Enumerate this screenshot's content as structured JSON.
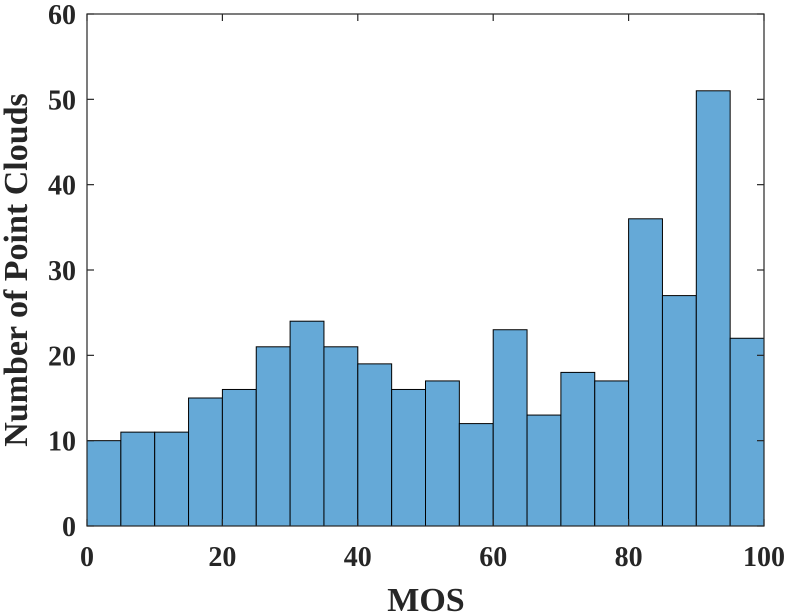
{
  "chart_data": {
    "type": "bar",
    "bin_width": 5,
    "bins": [
      {
        "x0": 0,
        "x1": 5,
        "count": 10
      },
      {
        "x0": 5,
        "x1": 10,
        "count": 11
      },
      {
        "x0": 10,
        "x1": 15,
        "count": 11
      },
      {
        "x0": 15,
        "x1": 20,
        "count": 15
      },
      {
        "x0": 20,
        "x1": 25,
        "count": 16
      },
      {
        "x0": 25,
        "x1": 30,
        "count": 21
      },
      {
        "x0": 30,
        "x1": 35,
        "count": 24
      },
      {
        "x0": 35,
        "x1": 40,
        "count": 21
      },
      {
        "x0": 40,
        "x1": 45,
        "count": 19
      },
      {
        "x0": 45,
        "x1": 50,
        "count": 16
      },
      {
        "x0": 50,
        "x1": 55,
        "count": 17
      },
      {
        "x0": 55,
        "x1": 60,
        "count": 12
      },
      {
        "x0": 60,
        "x1": 65,
        "count": 23
      },
      {
        "x0": 65,
        "x1": 70,
        "count": 13
      },
      {
        "x0": 70,
        "x1": 75,
        "count": 18
      },
      {
        "x0": 75,
        "x1": 80,
        "count": 17
      },
      {
        "x0": 80,
        "x1": 85,
        "count": 36
      },
      {
        "x0": 85,
        "x1": 90,
        "count": 27
      },
      {
        "x0": 90,
        "x1": 95,
        "count": 51
      },
      {
        "x0": 95,
        "x1": 100,
        "count": 22
      }
    ],
    "xlabel": "MOS",
    "ylabel": "Number of Point Clouds",
    "xlim": [
      0,
      100
    ],
    "ylim": [
      0,
      60
    ],
    "xticks": [
      0,
      20,
      40,
      60,
      80,
      100
    ],
    "yticks": [
      0,
      10,
      20,
      30,
      40,
      50,
      60
    ],
    "bar_color": "#65a9d7",
    "edge_color": "#000000",
    "axis_color": "#262626",
    "grid": false,
    "legend": "none"
  }
}
